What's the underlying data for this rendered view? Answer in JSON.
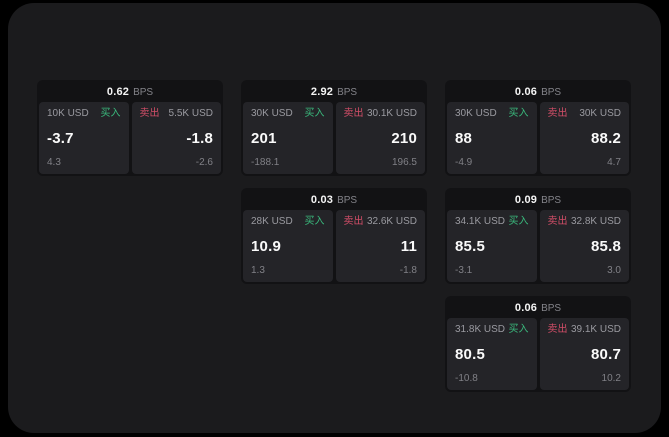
{
  "labels": {
    "bps_unit": "BPS",
    "buy": "买入",
    "sell": "卖出"
  },
  "colors": {
    "page_background": "#000000",
    "surface": "#1b1b1d",
    "card_background": "#121214",
    "panel_background": "#242428",
    "text_primary": "#fafafa",
    "text_secondary": "#9a9aa0",
    "buy_green": "#3aba7d",
    "sell_red": "#d24e68"
  },
  "cards": [
    {
      "bps": "0.62",
      "buy": {
        "size": "10K USD",
        "price": "-3.7",
        "delta": "4.3"
      },
      "sell": {
        "size": "5.5K USD",
        "price": "-1.8",
        "delta": "-2.6"
      }
    },
    {
      "bps": "2.92",
      "buy": {
        "size": "30K USD",
        "price": "201",
        "delta": "-188.1"
      },
      "sell": {
        "size": "30.1K USD",
        "price": "210",
        "delta": "196.5"
      }
    },
    {
      "bps": "0.06",
      "buy": {
        "size": "30K USD",
        "price": "88",
        "delta": "-4.9"
      },
      "sell": {
        "size": "30K USD",
        "price": "88.2",
        "delta": "4.7"
      }
    },
    {
      "bps": "0.03",
      "buy": {
        "size": "28K USD",
        "price": "10.9",
        "delta": "1.3"
      },
      "sell": {
        "size": "32.6K USD",
        "price": "11",
        "delta": "-1.8"
      }
    },
    {
      "bps": "0.09",
      "buy": {
        "size": "34.1K USD",
        "price": "85.5",
        "delta": "-3.1"
      },
      "sell": {
        "size": "32.8K USD",
        "price": "85.8",
        "delta": "3.0"
      }
    },
    {
      "bps": "0.06",
      "buy": {
        "size": "31.8K USD",
        "price": "80.5",
        "delta": "-10.8"
      },
      "sell": {
        "size": "39.1K USD",
        "price": "80.7",
        "delta": "10.2"
      }
    }
  ]
}
